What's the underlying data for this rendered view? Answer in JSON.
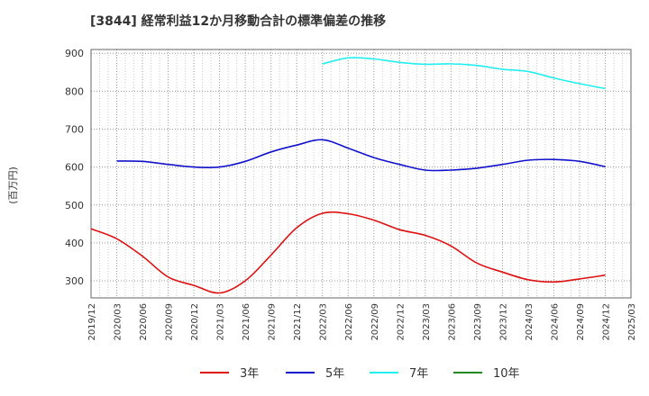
{
  "chart_data": {
    "type": "line",
    "title": "[3844]  経常利益12か月移動合計の標準偏差の推移",
    "ylabel": "(百万円)",
    "ylim": [
      255,
      910
    ],
    "yticks": [
      300,
      400,
      500,
      600,
      700,
      800,
      900
    ],
    "x": [
      "2019/12",
      "2020/03",
      "2020/06",
      "2020/09",
      "2020/12",
      "2021/03",
      "2021/06",
      "2021/09",
      "2021/12",
      "2022/03",
      "2022/06",
      "2022/09",
      "2022/12",
      "2023/03",
      "2023/06",
      "2023/09",
      "2023/12",
      "2024/03",
      "2024/06",
      "2024/09",
      "2024/12",
      "2025/03"
    ],
    "grid": true,
    "legend_position": "bottom",
    "series": [
      {
        "name": "3年",
        "color": "#dd1111",
        "values": [
          437,
          411,
          365,
          310,
          288,
          268,
          300,
          368,
          440,
          478,
          477,
          460,
          435,
          420,
          392,
          347,
          323,
          303,
          297,
          305,
          315,
          null
        ]
      },
      {
        "name": "5年",
        "color": "#1111cc",
        "values": [
          null,
          616,
          615,
          607,
          600,
          600,
          615,
          640,
          658,
          672,
          650,
          625,
          607,
          592,
          592,
          597,
          607,
          618,
          620,
          615,
          601,
          null
        ]
      },
      {
        "name": "7年",
        "color": "#22eeee",
        "values": [
          null,
          null,
          null,
          null,
          null,
          null,
          null,
          null,
          null,
          872,
          888,
          885,
          876,
          871,
          872,
          868,
          858,
          852,
          835,
          820,
          807,
          null
        ]
      },
      {
        "name": "10年",
        "color": "#228822",
        "values": [
          null,
          null,
          null,
          null,
          null,
          null,
          null,
          null,
          null,
          null,
          null,
          null,
          null,
          null,
          null,
          null,
          null,
          null,
          null,
          null,
          null,
          null
        ]
      }
    ]
  }
}
